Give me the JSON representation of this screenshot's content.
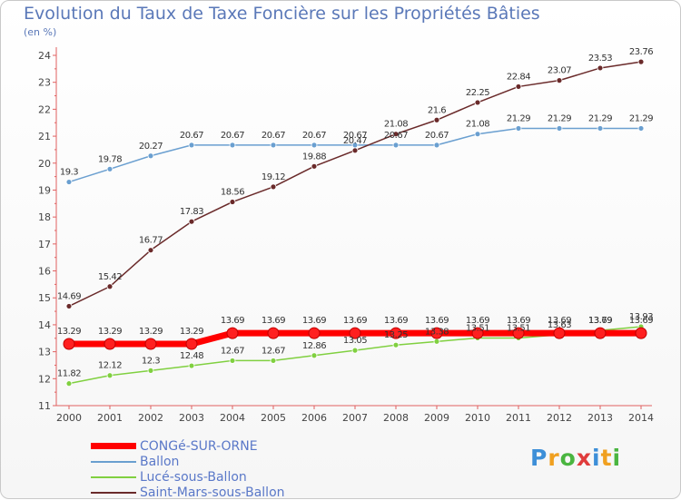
{
  "logo": {
    "text": "Proxiti",
    "letter_colors": [
      "#3d8fd8",
      "#f0a020",
      "#4ab540",
      "#e03c3c",
      "#3d8fd8",
      "#f0a020",
      "#4ab540"
    ]
  },
  "chart_data": {
    "type": "line",
    "title": "Evolution du Taux de Taxe Foncière sur les Propriétés Bâties",
    "ylabel": "(en %)",
    "xlabel": "",
    "ylim": [
      11,
      24
    ],
    "x": [
      "2000",
      "2001",
      "2002",
      "2003",
      "2004",
      "2005",
      "2006",
      "2007",
      "2008",
      "2009",
      "2010",
      "2011",
      "2012",
      "2013",
      "2014"
    ],
    "y_ticks": [
      "11",
      "12",
      "13",
      "14",
      "15",
      "16",
      "17",
      "18",
      "19",
      "20",
      "21",
      "22",
      "23",
      "24"
    ],
    "series": [
      {
        "name": "CONGé-SUR-ORNE",
        "color": "#ff0000",
        "values": [
          13.29,
          13.29,
          13.29,
          13.29,
          13.69,
          13.69,
          13.69,
          13.69,
          13.69,
          13.69,
          13.69,
          13.69,
          13.69,
          13.69,
          13.69
        ],
        "labels": [
          "13.29",
          "13.29",
          "13.29",
          "13.29",
          "13.69",
          "13.69",
          "13.69",
          "13.69",
          "13.69",
          "13.69",
          "13.69",
          "13.69",
          "13.69",
          "13.69",
          "13.69"
        ]
      },
      {
        "name": "Ballon",
        "color": "#6a9fd0",
        "values": [
          19.3,
          19.78,
          20.27,
          20.67,
          20.67,
          20.67,
          20.67,
          20.67,
          20.67,
          20.67,
          21.08,
          21.29,
          21.29,
          21.29,
          21.29
        ],
        "labels": [
          "19.3",
          "19.78",
          "20.27",
          "20.67",
          "20.67",
          "20.67",
          "20.67",
          "20.67",
          "20.67",
          "20.67",
          "21.08",
          "21.29",
          "21.29",
          "21.29",
          "21.29"
        ]
      },
      {
        "name": "Lucé-sous-Ballon",
        "color": "#80d040",
        "values": [
          11.82,
          12.12,
          12.3,
          12.48,
          12.67,
          12.67,
          12.86,
          13.05,
          13.25,
          13.38,
          13.51,
          13.51,
          13.63,
          13.79,
          13.93
        ],
        "labels": [
          "11.82",
          "12.12",
          "12.3",
          "12.48",
          "12.67",
          "12.67",
          "12.86",
          "13.05",
          "13.25",
          "13.38",
          "13.51",
          "13.51",
          "13.63",
          "13.79",
          "13.93"
        ]
      },
      {
        "name": "Saint-Mars-sous-Ballon",
        "color": "#6a2a2a",
        "values": [
          14.69,
          15.42,
          16.77,
          17.83,
          18.56,
          19.12,
          19.88,
          20.47,
          21.08,
          21.6,
          22.25,
          22.84,
          23.07,
          23.53,
          23.76
        ],
        "labels": [
          "14.69",
          "15.42",
          "16.77",
          "17.83",
          "18.56",
          "19.12",
          "19.88",
          "20.47",
          "21.08",
          "21.6",
          "22.25",
          "22.84",
          "23.07",
          "23.53",
          "23.76"
        ]
      }
    ],
    "grid": false,
    "legend_position": "bottom-left"
  }
}
